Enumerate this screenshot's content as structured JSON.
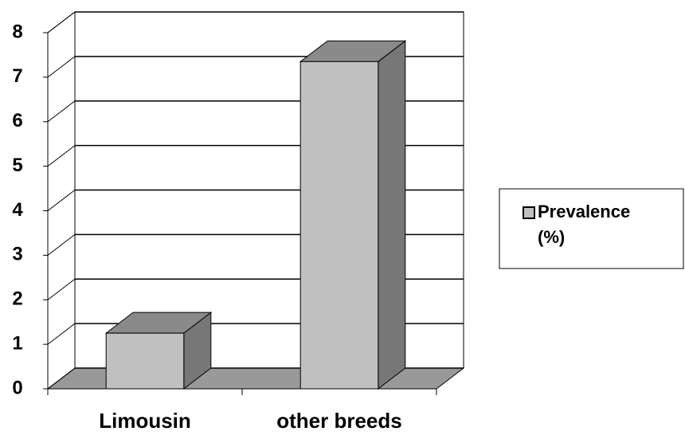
{
  "chart_data": {
    "type": "bar3d",
    "categories": [
      "Limousin",
      "other breeds"
    ],
    "series": [
      {
        "name": "Prevalence (%)",
        "color": "#c0c0c0",
        "values": [
          1.25,
          7.35
        ]
      }
    ],
    "ylim": [
      0,
      8
    ],
    "yticks": [
      0,
      1,
      2,
      3,
      4,
      5,
      6,
      7,
      8
    ],
    "grid": true,
    "legend": "right"
  }
}
